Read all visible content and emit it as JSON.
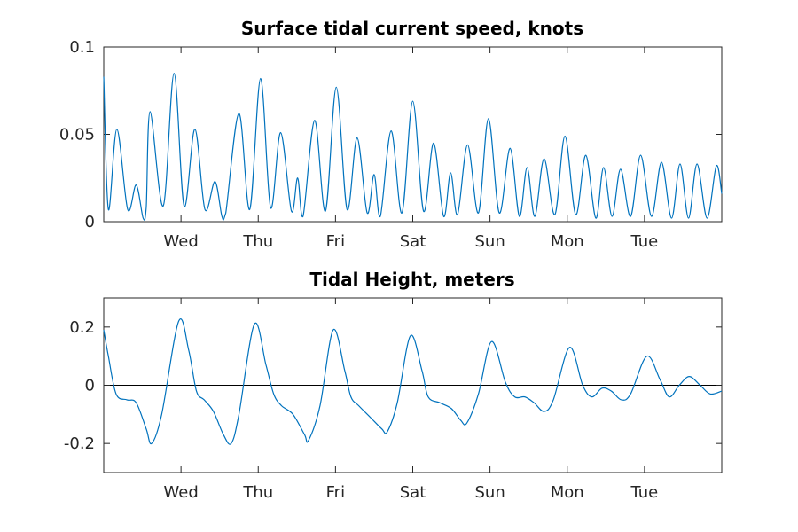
{
  "chart_data": [
    {
      "type": "line",
      "title": "Surface tidal current speed, knots",
      "xlabel": "",
      "ylabel": "",
      "x_unit": "days (Tue 00:00 = 0)",
      "xlim": [
        0,
        8
      ],
      "ylim": [
        0,
        0.1
      ],
      "yticks": [
        0,
        0.05,
        0.1
      ],
      "ytick_labels": [
        "0",
        "0.05",
        "0.1"
      ],
      "xticks": [
        1,
        2,
        3,
        4,
        5,
        6,
        7
      ],
      "xtick_labels": [
        "Wed",
        "Thu",
        "Fri",
        "Sat",
        "Sun",
        "Mon",
        "Tue"
      ],
      "grid": false,
      "series": [
        {
          "color": "#0072BD",
          "x": [
            0.0,
            0.06,
            0.17,
            0.31,
            0.42,
            0.51,
            0.55,
            0.6,
            0.77,
            0.91,
            1.04,
            1.18,
            1.31,
            1.44,
            1.53,
            1.58,
            1.75,
            1.89,
            2.03,
            2.16,
            2.29,
            2.43,
            2.51,
            2.58,
            2.73,
            2.87,
            3.01,
            3.15,
            3.28,
            3.41,
            3.5,
            3.58,
            3.72,
            3.86,
            4.0,
            4.14,
            4.27,
            4.4,
            4.49,
            4.58,
            4.71,
            4.85,
            4.98,
            5.12,
            5.26,
            5.38,
            5.48,
            5.58,
            5.7,
            5.84,
            5.97,
            6.11,
            6.24,
            6.37,
            6.47,
            6.58,
            6.69,
            6.82,
            6.95,
            7.09,
            7.22,
            7.35,
            7.46,
            7.57,
            7.68,
            7.81,
            7.93,
            8.0
          ],
          "y": [
            0.083,
            0.007,
            0.053,
            0.007,
            0.021,
            0.002,
            0.008,
            0.063,
            0.009,
            0.085,
            0.009,
            0.053,
            0.007,
            0.023,
            0.003,
            0.005,
            0.062,
            0.007,
            0.082,
            0.008,
            0.051,
            0.006,
            0.025,
            0.003,
            0.058,
            0.006,
            0.077,
            0.007,
            0.048,
            0.005,
            0.027,
            0.003,
            0.052,
            0.005,
            0.069,
            0.006,
            0.045,
            0.003,
            0.028,
            0.004,
            0.044,
            0.005,
            0.059,
            0.005,
            0.042,
            0.003,
            0.031,
            0.003,
            0.036,
            0.004,
            0.049,
            0.004,
            0.038,
            0.002,
            0.031,
            0.003,
            0.03,
            0.003,
            0.038,
            0.003,
            0.034,
            0.002,
            0.033,
            0.002,
            0.033,
            0.002,
            0.032,
            0.016
          ]
        }
      ]
    },
    {
      "type": "line",
      "title": "Tidal Height, meters",
      "xlabel": "",
      "ylabel": "",
      "x_unit": "days (Tue 00:00 = 0)",
      "xlim": [
        0,
        8
      ],
      "ylim": [
        -0.3,
        0.3
      ],
      "yticks": [
        -0.2,
        0,
        0.2
      ],
      "ytick_labels": [
        "-0.2",
        "0",
        "0.2"
      ],
      "xticks": [
        1,
        2,
        3,
        4,
        5,
        6,
        7
      ],
      "xtick_labels": [
        "Wed",
        "Thu",
        "Fri",
        "Sat",
        "Sun",
        "Mon",
        "Tue"
      ],
      "grid": false,
      "reference_line": 0,
      "series": [
        {
          "color": "#0072BD",
          "x": [
            0.0,
            0.06,
            0.16,
            0.3,
            0.42,
            0.55,
            0.62,
            0.75,
            0.97,
            1.1,
            1.2,
            1.3,
            1.42,
            1.55,
            1.65,
            1.75,
            1.95,
            2.1,
            2.2,
            2.3,
            2.45,
            2.6,
            2.65,
            2.8,
            2.97,
            3.12,
            3.2,
            3.3,
            3.45,
            3.6,
            3.67,
            3.8,
            3.97,
            4.12,
            4.2,
            4.35,
            4.5,
            4.62,
            4.7,
            4.85,
            5.02,
            5.2,
            5.32,
            5.45,
            5.57,
            5.7,
            5.82,
            6.03,
            6.2,
            6.32,
            6.45,
            6.57,
            6.7,
            6.82,
            7.03,
            7.2,
            7.32,
            7.45,
            7.58,
            7.72,
            7.85,
            8.0
          ],
          "y": [
            0.19,
            0.1,
            -0.03,
            -0.05,
            -0.06,
            -0.15,
            -0.2,
            -0.1,
            0.22,
            0.12,
            -0.02,
            -0.05,
            -0.09,
            -0.17,
            -0.2,
            -0.1,
            0.21,
            0.07,
            -0.03,
            -0.07,
            -0.1,
            -0.17,
            -0.19,
            -0.07,
            0.19,
            0.05,
            -0.04,
            -0.07,
            -0.11,
            -0.15,
            -0.16,
            -0.06,
            0.17,
            0.05,
            -0.04,
            -0.06,
            -0.08,
            -0.12,
            -0.13,
            -0.03,
            0.15,
            0.01,
            -0.04,
            -0.04,
            -0.06,
            -0.09,
            -0.05,
            0.13,
            0.0,
            -0.04,
            -0.01,
            -0.02,
            -0.05,
            -0.03,
            0.1,
            0.02,
            -0.04,
            0.0,
            0.03,
            0.0,
            -0.03,
            -0.02
          ]
        }
      ]
    }
  ]
}
